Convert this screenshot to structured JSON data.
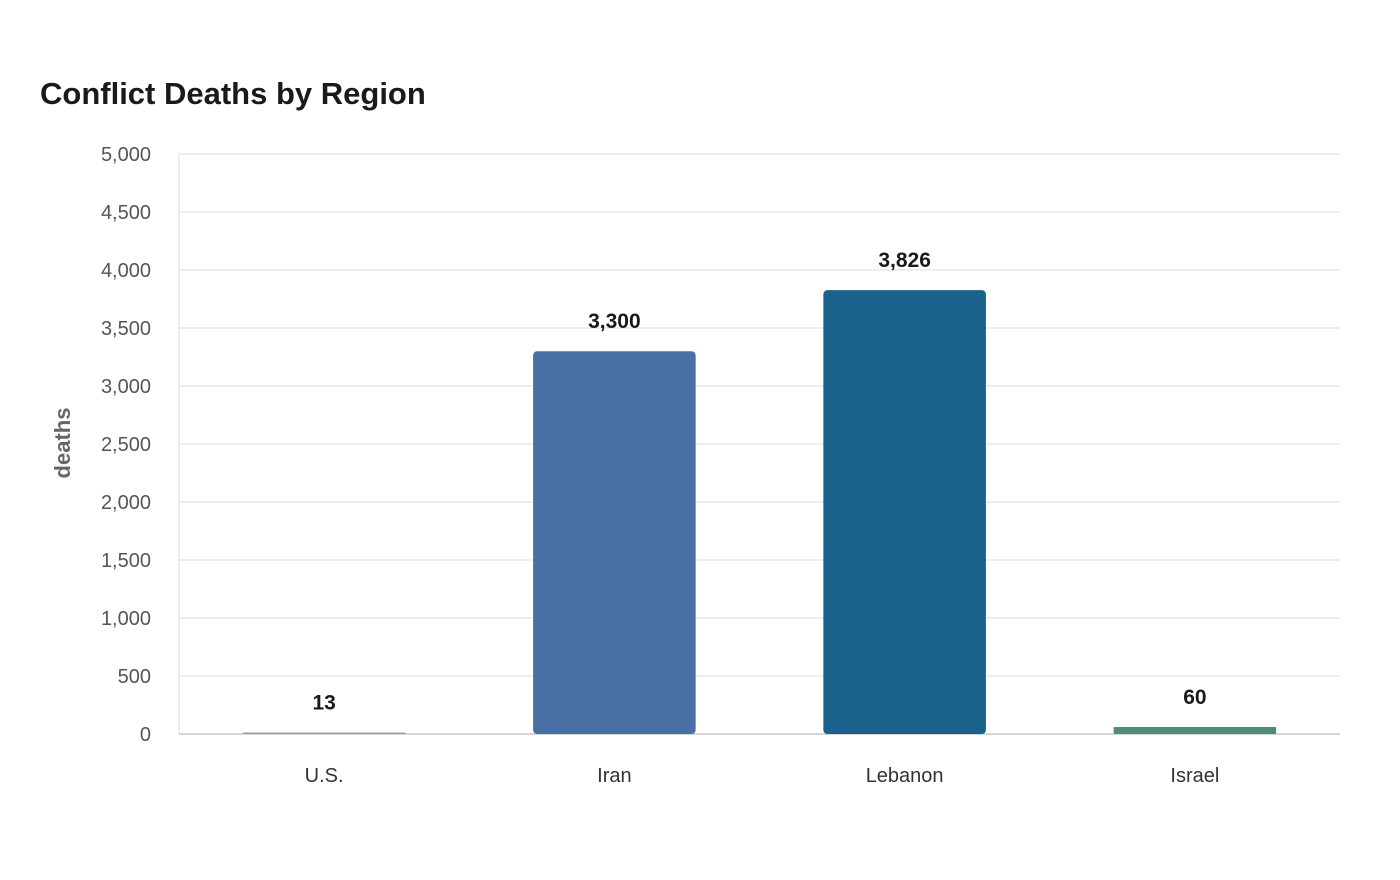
{
  "chart_data": {
    "type": "bar",
    "title": "Conflict Deaths by Region",
    "xlabel": "",
    "ylabel": "deaths",
    "categories": [
      "U.S.",
      "Iran",
      "Lebanon",
      "Israel"
    ],
    "values": [
      13,
      3300,
      3826,
      60
    ],
    "data_labels": [
      "13",
      "3,300",
      "3,826",
      "60"
    ],
    "colors": [
      "#9e9e9e",
      "#4a6fa5",
      "#18628b",
      "#4f8c78"
    ],
    "ylim": [
      0,
      5000
    ],
    "yticks": [
      0,
      500,
      1000,
      1500,
      2000,
      2500,
      3000,
      3500,
      4000,
      4500,
      5000
    ],
    "ytick_labels": [
      "0",
      "500",
      "1,000",
      "1,500",
      "2,000",
      "2,500",
      "3,000",
      "3,500",
      "4,000",
      "4,500",
      "5,000"
    ],
    "grid": true,
    "legend": "none"
  }
}
